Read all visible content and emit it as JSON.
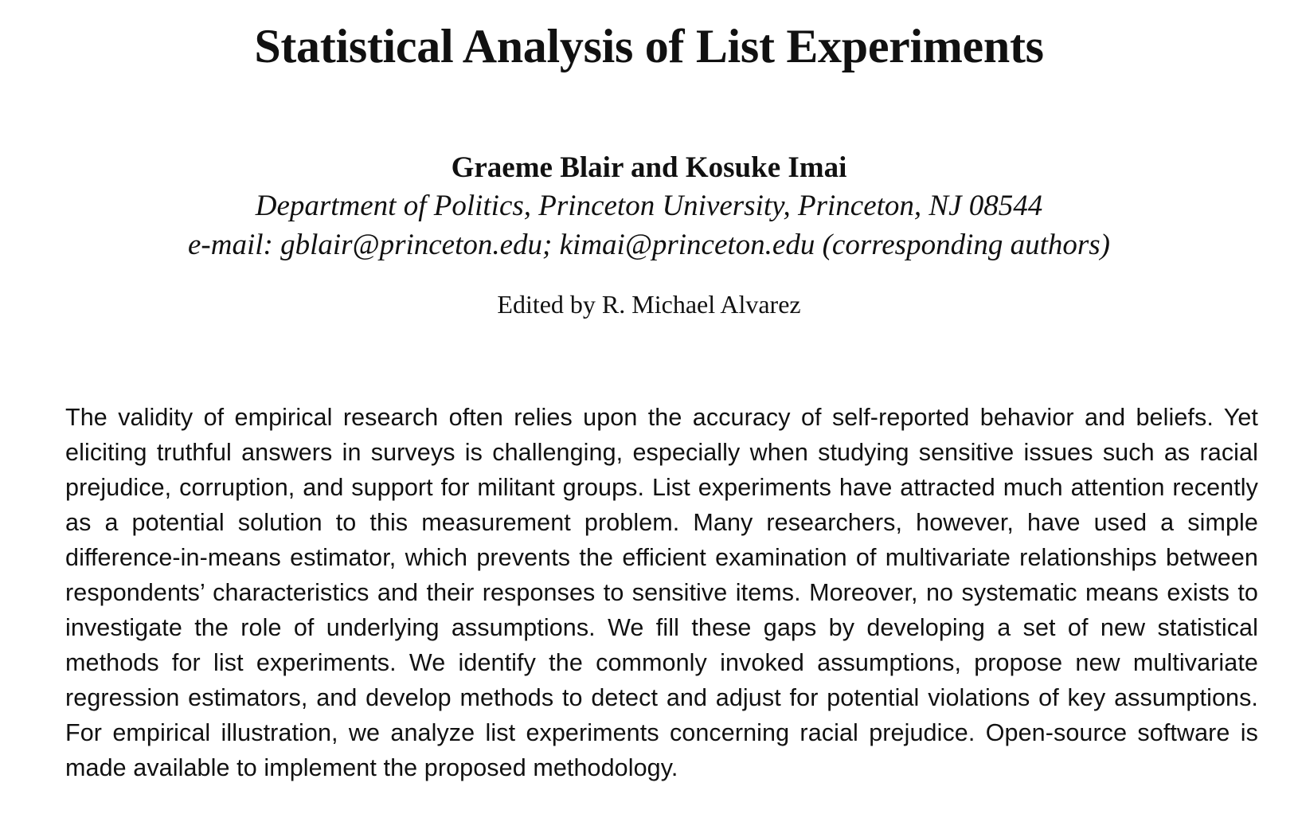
{
  "paper": {
    "title": "Statistical Analysis of List Experiments",
    "authors": "Graeme Blair and Kosuke Imai",
    "affiliation": "Department of Politics, Princeton University, Princeton, NJ 08544",
    "email": "e-mail: gblair@princeton.edu; kimai@princeton.edu (corresponding authors)",
    "editor": "Edited by R. Michael Alvarez",
    "abstract": "The validity of empirical research often relies upon the accuracy of self-reported behavior and beliefs. Yet eliciting truthful answers in surveys is challenging, especially when studying sensitive issues such as racial prejudice, corruption, and support for militant groups. List experiments have attracted much attention recently as a potential solution to this measurement problem. Many researchers, however, have used a simple difference-in-means estimator, which prevents the efficient examination of multivariate relationships between respondents’ characteristics and their responses to sensitive items. Moreover, no systematic means exists to investigate the role of underlying assumptions. We fill these gaps by developing a set of new statistical methods for list experiments. We identify the commonly invoked assumptions, propose new multivariate regression estimators, and develop methods to detect and adjust for potential violations of key assumptions. For empirical illustration, we analyze list experiments concerning racial prejudice. Open-source software is made available to implement the proposed methodology."
  }
}
